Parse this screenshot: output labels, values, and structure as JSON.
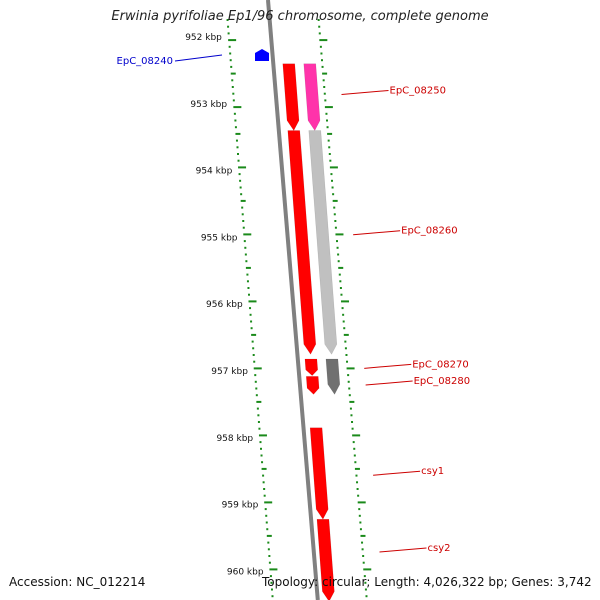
{
  "title": "Erwinia pyrifoliae Ep1/96 chromosome, complete genome",
  "accession_text": "Accession: NC_012214",
  "summary_text": "Topology: circular; Length: 4,026,322 bp; Genes: 3,742",
  "colors": {
    "backbone": "#808080",
    "ticks": "#1a8a1a",
    "gene_red": "#ff0000",
    "gene_pink": "#ff33aa",
    "gene_lightgray": "#c0c0c0",
    "gene_darkgray": "#707070",
    "gene_blue": "#0000ff",
    "label_red": "#cc0000",
    "label_blue": "#0000cc"
  },
  "scale": {
    "labels": [
      {
        "kbp": 952,
        "text": "952 kbp"
      },
      {
        "kbp": 953,
        "text": "953 kbp"
      },
      {
        "kbp": 954,
        "text": "954 kbp"
      },
      {
        "kbp": 955,
        "text": "955 kbp"
      },
      {
        "kbp": 956,
        "text": "956 kbp"
      },
      {
        "kbp": 957,
        "text": "957 kbp"
      },
      {
        "kbp": 958,
        "text": "958 kbp"
      },
      {
        "kbp": 959,
        "text": "959 kbp"
      },
      {
        "kbp": 960,
        "text": "960 kbp"
      }
    ]
  },
  "genes": [
    {
      "id": "EpC_08240",
      "label": "EpC_08240",
      "start_kbp": 952.22,
      "end_kbp": 952.32,
      "strand": "minus",
      "track": 0,
      "color": "gene_blue",
      "label_color": "label_blue"
    },
    {
      "id": "EpC_08250",
      "label": "EpC_08250",
      "start_kbp": 952.4,
      "end_kbp": 953.4,
      "strand": "plus",
      "track": 1,
      "color": "gene_pink",
      "label_color": "label_red"
    },
    {
      "id": "EpC_08260",
      "label": "EpC_08260",
      "start_kbp": 953.4,
      "end_kbp": 956.75,
      "strand": "plus",
      "track": 1,
      "color": "gene_lightgray",
      "label_color": "label_red"
    },
    {
      "id": "gene_a",
      "label": "",
      "start_kbp": 952.4,
      "end_kbp": 953.4,
      "strand": "plus",
      "track": 0,
      "color": "gene_red",
      "label_color": "label_red"
    },
    {
      "id": "gene_b",
      "label": "",
      "start_kbp": 953.4,
      "end_kbp": 956.75,
      "strand": "plus",
      "track": 0,
      "color": "gene_red",
      "label_color": "label_red"
    },
    {
      "id": "EpC_08270",
      "label": "EpC_08270",
      "start_kbp": 956.82,
      "end_kbp": 957.35,
      "strand": "plus",
      "track": 1,
      "color": "gene_darkgray",
      "label_color": "label_red"
    },
    {
      "id": "gene_c",
      "label": "",
      "start_kbp": 956.82,
      "end_kbp": 957.07,
      "strand": "plus",
      "track": 0,
      "color": "gene_red",
      "label_color": "label_red"
    },
    {
      "id": "EpC_08280",
      "label": "EpC_08280",
      "start_kbp": 957.08,
      "end_kbp": 957.35,
      "strand": "plus",
      "track": 0,
      "color": "gene_red",
      "label_color": "label_red"
    },
    {
      "id": "csy1",
      "label": "csy1",
      "start_kbp": 957.85,
      "end_kbp": 959.22,
      "strand": "plus",
      "track": 0,
      "color": "gene_red",
      "label_color": "label_red"
    },
    {
      "id": "csy2",
      "label": "csy2",
      "start_kbp": 959.22,
      "end_kbp": 960.45,
      "strand": "plus",
      "track": 0,
      "color": "gene_red",
      "label_color": "label_red"
    }
  ],
  "gene_labels": [
    {
      "gene": "EpC_08240",
      "text": "EpC_08240",
      "side": "left",
      "at_kbp": 952.27
    },
    {
      "gene": "EpC_08250",
      "text": "EpC_08250",
      "side": "right",
      "at_kbp": 952.8
    },
    {
      "gene": "EpC_08260",
      "text": "EpC_08260",
      "side": "right",
      "at_kbp": 954.9
    },
    {
      "gene": "EpC_08270",
      "text": "EpC_08270",
      "side": "right",
      "at_kbp": 956.9
    },
    {
      "gene": "EpC_08280",
      "text": "EpC_08280",
      "side": "right",
      "at_kbp": 957.15
    },
    {
      "gene": "csy1",
      "text": "csy1",
      "side": "right",
      "at_kbp": 958.5
    },
    {
      "gene": "csy2",
      "text": "csy2",
      "side": "right",
      "at_kbp": 959.65
    }
  ]
}
